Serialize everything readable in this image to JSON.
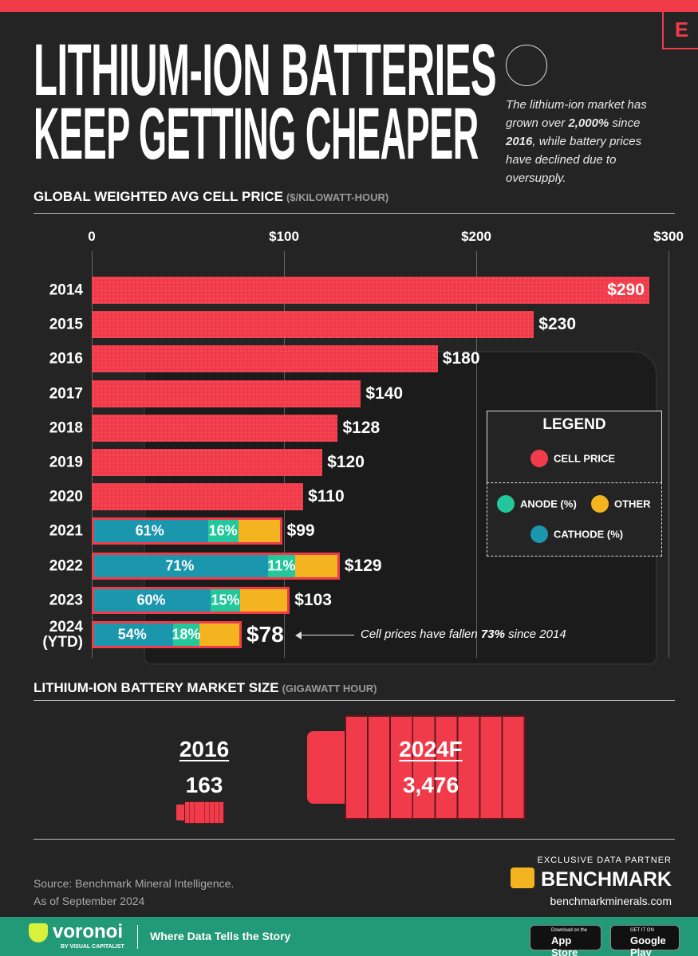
{
  "header": {
    "title_lines": [
      "LITHIUM-ION BATTERIES",
      "KEEP GETTING CHEAPER"
    ],
    "logo": "E",
    "subtitle_parts": [
      "The lithium-ion market has grown over ",
      "2,000%",
      " since ",
      "2016",
      ", while battery prices have declined due to oversupply."
    ]
  },
  "chart_data": {
    "type": "bar",
    "orientation": "horizontal",
    "title": "GLOBAL WEIGHTED AVG CELL PRICE",
    "unit": "($/KILOWATT-HOUR)",
    "categories": [
      "2014",
      "2015",
      "2016",
      "2017",
      "2018",
      "2019",
      "2020",
      "2021",
      "2022",
      "2023",
      "2024 (YTD)"
    ],
    "series": [
      {
        "name": "CELL PRICE",
        "color": "#f23b4a",
        "values": [
          290,
          230,
          180,
          140,
          128,
          120,
          110,
          99,
          129,
          103,
          78
        ],
        "value_labels": [
          "$290",
          "$230",
          "$180",
          "$140",
          "$128",
          "$120",
          "$110",
          "$99",
          "$129",
          "$103",
          "$78"
        ]
      },
      {
        "name": "CATHODE (%)",
        "color": "#1b97ad",
        "values": [
          null,
          null,
          null,
          null,
          null,
          null,
          null,
          61,
          71,
          60,
          54
        ],
        "value_labels": [
          null,
          null,
          null,
          null,
          null,
          null,
          null,
          "61%",
          "71%",
          "60%",
          "54%"
        ]
      },
      {
        "name": "ANODE (%)",
        "color": "#22c89b",
        "values": [
          null,
          null,
          null,
          null,
          null,
          null,
          null,
          16,
          11,
          15,
          18
        ],
        "value_labels": [
          null,
          null,
          null,
          null,
          null,
          null,
          null,
          "16%",
          "11%",
          "15%",
          "18%"
        ]
      }
    ],
    "xlim": [
      0,
      300
    ],
    "xticks": [
      0,
      {
        "value": 100,
        "label": "$100"
      },
      {
        "value": 200,
        "label": "$200"
      },
      {
        "value": 300,
        "label": "$300"
      }
    ],
    "grid": true,
    "legend": {
      "title": "LEGEND",
      "extra": [
        {
          "name": "OTHER",
          "color": "#f4b41f"
        }
      ]
    },
    "annotation_parts": [
      "Cell prices have fallen ",
      "73%",
      " since 2014"
    ]
  },
  "market_size": {
    "title": "LITHIUM-ION BATTERY MARKET SIZE",
    "unit": "(GIGAWATT HOUR)",
    "color": "#f23b4a",
    "items": [
      {
        "label": "2016",
        "value": 163,
        "value_label": "163"
      },
      {
        "label": "2024F",
        "value": 3476,
        "value_label": "3,476"
      }
    ]
  },
  "footer": {
    "source": "Source: Benchmark Mineral Intelligence.",
    "date": "As of September 2024",
    "partner_label": "EXCLUSIVE DATA PARTNER",
    "partner": "BENCHMARK",
    "partner_url": "benchmarkminerals.com",
    "brand": "voronoi",
    "brand_sub": "BY VISUAL CAPITALIST",
    "tagline": "Where Data Tells the Story",
    "app_store": [
      "Download on the",
      "App Store"
    ],
    "google_play": [
      "GET IT ON",
      "Google Play"
    ]
  }
}
